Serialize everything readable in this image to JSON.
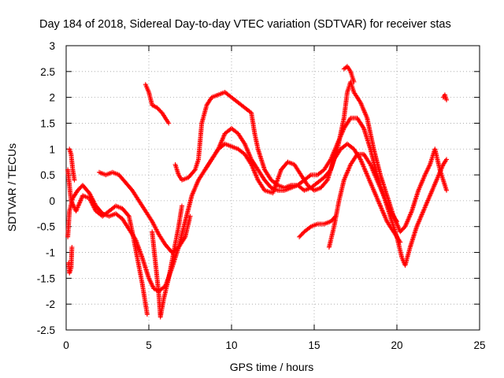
{
  "chart_data": {
    "type": "scatter",
    "title": "Day 184 of 2018, Sidereal Day-to-day VTEC variation (SDTVAR) for receiver stas",
    "xlabel": "GPS time / hours",
    "ylabel": "SDTVAR / TECUs",
    "xlim": [
      0,
      25
    ],
    "ylim": [
      -2.5,
      3
    ],
    "xticks": [
      0,
      5,
      10,
      15,
      20,
      25
    ],
    "xtick_labels": [
      "0",
      "5",
      "10",
      "15",
      "20",
      "25"
    ],
    "yticks": [
      -2.5,
      -2,
      -1.5,
      -1,
      -0.5,
      0,
      0.5,
      1,
      1.5,
      2,
      2.5,
      3
    ],
    "ytick_labels": [
      "-2.5",
      "-2",
      "-1.5",
      "-1",
      "-0.5",
      "0",
      "0.5",
      "1",
      "1.5",
      "2",
      "2.5",
      "3"
    ],
    "grid": true,
    "marker": "+",
    "color": "#ff0000",
    "series": [
      {
        "points": [
          [
            0.1,
            -0.7
          ],
          [
            0.2,
            -0.2
          ],
          [
            0.4,
            0.05
          ],
          [
            0.7,
            0.2
          ],
          [
            1.0,
            0.3
          ],
          [
            1.4,
            0.15
          ],
          [
            1.8,
            -0.1
          ],
          [
            2.2,
            -0.25
          ],
          [
            2.6,
            -0.3
          ],
          [
            3.0,
            -0.25
          ],
          [
            3.4,
            -0.35
          ],
          [
            3.8,
            -0.55
          ],
          [
            4.2,
            -0.75
          ],
          [
            4.6,
            -1.1
          ],
          [
            5.0,
            -1.5
          ],
          [
            5.3,
            -1.7
          ],
          [
            5.6,
            -1.75
          ],
          [
            6.0,
            -1.65
          ],
          [
            6.4,
            -1.3
          ],
          [
            6.8,
            -0.9
          ],
          [
            7.2,
            -0.4
          ],
          [
            7.6,
            0.1
          ],
          [
            8.0,
            0.4
          ],
          [
            8.4,
            0.6
          ],
          [
            8.8,
            0.8
          ],
          [
            9.2,
            1.0
          ],
          [
            9.6,
            1.3
          ],
          [
            10.0,
            1.4
          ],
          [
            10.4,
            1.3
          ],
          [
            10.8,
            1.1
          ],
          [
            11.2,
            0.8
          ],
          [
            11.6,
            0.6
          ],
          [
            12.0,
            0.4
          ],
          [
            12.4,
            0.25
          ],
          [
            12.8,
            0.2
          ],
          [
            13.2,
            0.2
          ],
          [
            13.6,
            0.25
          ],
          [
            14.0,
            0.3
          ],
          [
            14.4,
            0.4
          ],
          [
            14.8,
            0.5
          ],
          [
            15.2,
            0.5
          ],
          [
            15.6,
            0.6
          ],
          [
            16.0,
            0.8
          ],
          [
            16.4,
            1.1
          ],
          [
            16.8,
            1.4
          ],
          [
            17.2,
            1.6
          ],
          [
            17.6,
            1.6
          ],
          [
            18.0,
            1.4
          ],
          [
            18.4,
            1.0
          ],
          [
            18.8,
            0.5
          ],
          [
            19.2,
            0.1
          ],
          [
            19.6,
            -0.3
          ],
          [
            20.0,
            -0.7
          ],
          [
            20.3,
            -1.1
          ],
          [
            20.5,
            -1.25
          ],
          [
            20.8,
            -0.9
          ],
          [
            21.2,
            -0.5
          ],
          [
            21.6,
            -0.2
          ],
          [
            22.0,
            0.1
          ],
          [
            22.4,
            0.4
          ],
          [
            22.8,
            0.7
          ],
          [
            23.0,
            0.8
          ]
        ]
      },
      {
        "points": [
          [
            0.1,
            0.6
          ],
          [
            0.3,
            0.0
          ],
          [
            0.6,
            -0.2
          ],
          [
            1.0,
            0.1
          ],
          [
            1.4,
            0.05
          ],
          [
            1.8,
            -0.2
          ],
          [
            2.2,
            -0.3
          ],
          [
            2.6,
            -0.2
          ],
          [
            3.0,
            -0.1
          ],
          [
            3.4,
            -0.15
          ],
          [
            3.8,
            -0.3
          ],
          [
            4.0,
            -0.6
          ],
          [
            4.3,
            -1.1
          ],
          [
            4.6,
            -1.6
          ],
          [
            4.8,
            -2.0
          ],
          [
            4.9,
            -2.2
          ]
        ]
      },
      {
        "points": [
          [
            2.0,
            0.55
          ],
          [
            2.4,
            0.5
          ],
          [
            2.8,
            0.55
          ],
          [
            3.2,
            0.5
          ],
          [
            3.6,
            0.35
          ],
          [
            4.0,
            0.2
          ],
          [
            4.4,
            0.0
          ],
          [
            4.8,
            -0.2
          ],
          [
            5.2,
            -0.4
          ],
          [
            5.6,
            -0.65
          ],
          [
            6.0,
            -0.85
          ],
          [
            6.4,
            -1.0
          ],
          [
            6.8,
            -0.9
          ],
          [
            7.2,
            -0.7
          ],
          [
            7.5,
            -0.3
          ]
        ]
      },
      {
        "points": [
          [
            5.2,
            -0.6
          ],
          [
            5.4,
            -1.2
          ],
          [
            5.6,
            -1.8
          ],
          [
            5.7,
            -2.25
          ],
          [
            5.9,
            -1.9
          ],
          [
            6.2,
            -1.5
          ],
          [
            6.5,
            -1.0
          ],
          [
            6.8,
            -0.5
          ],
          [
            7.0,
            -0.1
          ]
        ]
      },
      {
        "points": [
          [
            4.8,
            2.25
          ],
          [
            5.0,
            2.1
          ],
          [
            5.2,
            1.85
          ],
          [
            5.5,
            1.8
          ],
          [
            5.8,
            1.7
          ],
          [
            6.0,
            1.6
          ],
          [
            6.2,
            1.5
          ]
        ]
      },
      {
        "points": [
          [
            6.6,
            0.7
          ],
          [
            6.8,
            0.5
          ],
          [
            7.0,
            0.4
          ],
          [
            7.4,
            0.45
          ],
          [
            7.8,
            0.6
          ],
          [
            8.0,
            0.8
          ],
          [
            8.2,
            1.5
          ],
          [
            8.5,
            1.85
          ],
          [
            8.8,
            2.0
          ],
          [
            9.2,
            2.05
          ],
          [
            9.6,
            2.1
          ],
          [
            10.0,
            2.0
          ],
          [
            10.4,
            1.9
          ],
          [
            10.8,
            1.8
          ],
          [
            11.2,
            1.7
          ],
          [
            11.4,
            1.3
          ],
          [
            11.6,
            1.0
          ],
          [
            12.0,
            0.6
          ],
          [
            12.4,
            0.4
          ],
          [
            12.8,
            0.3
          ],
          [
            13.2,
            0.25
          ],
          [
            13.6,
            0.3
          ],
          [
            14.0,
            0.3
          ],
          [
            14.4,
            0.2
          ],
          [
            14.8,
            0.25
          ],
          [
            15.2,
            0.35
          ],
          [
            15.6,
            0.45
          ],
          [
            16.0,
            0.6
          ],
          [
            16.4,
            1.0
          ],
          [
            16.8,
            1.6
          ],
          [
            17.0,
            2.1
          ],
          [
            17.2,
            2.3
          ],
          [
            17.4,
            2.1
          ],
          [
            17.8,
            1.9
          ],
          [
            18.2,
            1.6
          ],
          [
            18.6,
            1.0
          ],
          [
            19.0,
            0.5
          ],
          [
            19.4,
            0.1
          ],
          [
            19.8,
            -0.3
          ],
          [
            20.2,
            -0.6
          ],
          [
            20.5,
            -0.5
          ],
          [
            20.9,
            -0.2
          ],
          [
            21.3,
            0.2
          ],
          [
            21.7,
            0.5
          ],
          [
            22.0,
            0.7
          ],
          [
            22.3,
            1.0
          ],
          [
            22.6,
            0.6
          ],
          [
            22.9,
            0.3
          ],
          [
            23.0,
            0.2
          ]
        ]
      },
      {
        "points": [
          [
            8.4,
            0.6
          ],
          [
            8.8,
            0.8
          ],
          [
            9.2,
            1.0
          ],
          [
            9.6,
            1.1
          ],
          [
            10.0,
            1.05
          ],
          [
            10.4,
            1.0
          ],
          [
            10.8,
            0.9
          ],
          [
            11.2,
            0.7
          ],
          [
            11.6,
            0.4
          ],
          [
            12.0,
            0.2
          ],
          [
            12.5,
            0.15
          ],
          [
            13.0,
            0.6
          ],
          [
            13.4,
            0.75
          ],
          [
            13.8,
            0.7
          ],
          [
            14.2,
            0.5
          ],
          [
            14.6,
            0.3
          ],
          [
            15.0,
            0.2
          ],
          [
            15.4,
            0.25
          ],
          [
            15.8,
            0.4
          ],
          [
            16.2,
            0.8
          ],
          [
            16.6,
            1.0
          ],
          [
            17.0,
            1.1
          ],
          [
            17.4,
            1.0
          ],
          [
            17.8,
            0.8
          ],
          [
            18.2,
            0.5
          ],
          [
            18.6,
            0.2
          ],
          [
            19.0,
            -0.1
          ],
          [
            19.4,
            -0.4
          ],
          [
            19.8,
            -0.6
          ],
          [
            20.2,
            -0.8
          ]
        ]
      },
      {
        "points": [
          [
            14.1,
            -0.7
          ],
          [
            14.4,
            -0.6
          ],
          [
            14.8,
            -0.5
          ],
          [
            15.2,
            -0.45
          ],
          [
            15.6,
            -0.45
          ],
          [
            16.0,
            -0.4
          ],
          [
            16.3,
            -0.3
          ]
        ]
      },
      {
        "points": [
          [
            15.9,
            -0.9
          ],
          [
            16.2,
            -0.5
          ],
          [
            16.5,
            0.0
          ],
          [
            16.8,
            0.4
          ],
          [
            17.2,
            0.7
          ],
          [
            17.6,
            0.9
          ],
          [
            18.0,
            0.9
          ],
          [
            18.4,
            0.7
          ],
          [
            18.8,
            0.4
          ],
          [
            19.2,
            0.1
          ],
          [
            19.6,
            -0.2
          ],
          [
            20.0,
            -0.4
          ]
        ]
      },
      {
        "points": [
          [
            16.8,
            2.55
          ],
          [
            17.0,
            2.6
          ],
          [
            17.2,
            2.5
          ],
          [
            17.4,
            2.3
          ]
        ]
      },
      {
        "points": [
          [
            22.8,
            2.0
          ],
          [
            22.9,
            2.05
          ],
          [
            23.0,
            1.95
          ]
        ]
      },
      {
        "points": [
          [
            0.2,
            1.0
          ],
          [
            0.3,
            0.9
          ],
          [
            0.4,
            0.6
          ],
          [
            0.5,
            0.4
          ]
        ]
      },
      {
        "points": [
          [
            0.15,
            -1.2
          ],
          [
            0.2,
            -1.4
          ],
          [
            0.3,
            -1.3
          ],
          [
            0.35,
            -0.9
          ]
        ]
      }
    ]
  }
}
